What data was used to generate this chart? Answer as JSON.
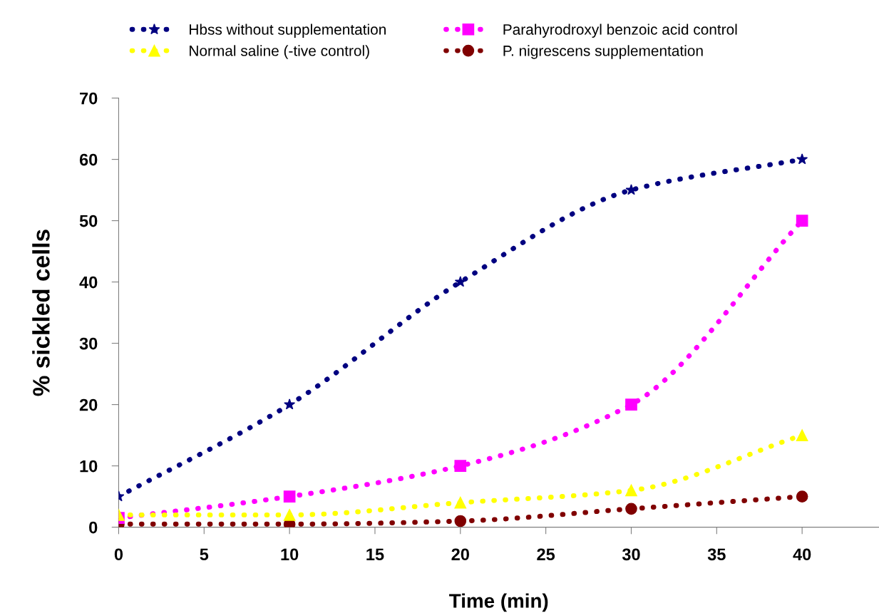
{
  "chart_data": {
    "type": "line",
    "xlabel": "Time (min)",
    "ylabel": "% sickled cells",
    "x": [
      0,
      10,
      20,
      30,
      40
    ],
    "series": [
      {
        "name": "Hbss without supplementation",
        "color": "#000080",
        "marker": "star",
        "values": [
          5,
          20,
          40,
          55,
          60
        ]
      },
      {
        "name": "Normal saline (-tive control)",
        "color": "#ffff00",
        "marker": "triangle",
        "values": [
          2,
          2,
          4,
          6,
          15
        ]
      },
      {
        "name": "Parahyrodroxyl benzoic acid control",
        "color": "#ff00ff",
        "marker": "square",
        "values": [
          1.5,
          5,
          10,
          20,
          50
        ]
      },
      {
        "name": "P. nigrescens supplementation",
        "color": "#800000",
        "marker": "circle",
        "values": [
          0.5,
          0.5,
          1,
          3,
          5
        ]
      }
    ],
    "xlim": [
      0,
      44.5
    ],
    "xticks": [
      0,
      5,
      10,
      15,
      20,
      25,
      30,
      35,
      40
    ],
    "ylim": [
      0,
      70
    ],
    "yticks": [
      0,
      10,
      20,
      30,
      40,
      50,
      60,
      70
    ],
    "grid": false,
    "legend": "top",
    "line_style": "dotted"
  }
}
